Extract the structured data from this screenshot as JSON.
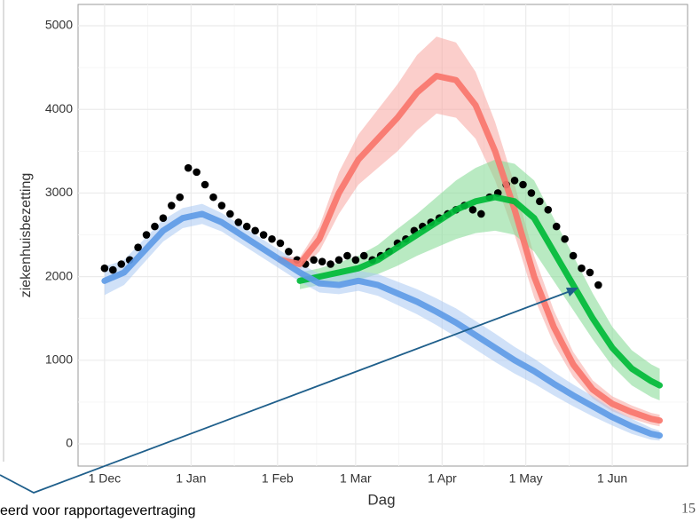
{
  "chart_data": {
    "type": "line",
    "xlabel": "Dag",
    "ylabel": "ziekenhuisbezetting",
    "xlim": [
      -9.5,
      209
    ],
    "ylim": [
      -265,
      5255
    ],
    "xticks": [
      {
        "value": 0,
        "label": "1 Dec"
      },
      {
        "value": 31,
        "label": "1 Jan"
      },
      {
        "value": 62,
        "label": "1 Feb"
      },
      {
        "value": 90,
        "label": "1 Mar"
      },
      {
        "value": 121,
        "label": "1 Apr"
      },
      {
        "value": 151,
        "label": "1 May"
      },
      {
        "value": 182,
        "label": "1 Jun"
      }
    ],
    "yticks": [
      0,
      1000,
      2000,
      3000,
      4000,
      5000
    ],
    "grid": true,
    "series": [
      {
        "color": "#f8766d",
        "band_color": "#f8a5a0",
        "x": [
          63,
          70,
          77,
          84,
          91,
          98,
          105,
          112,
          119,
          126,
          133,
          140,
          147,
          154,
          161,
          168,
          175,
          182,
          189,
          196,
          199
        ],
        "values": [
          2200,
          2150,
          2450,
          3000,
          3400,
          3650,
          3900,
          4200,
          4400,
          4350,
          4050,
          3500,
          2800,
          2000,
          1400,
          950,
          650,
          480,
          380,
          300,
          280
        ],
        "lower": [
          2150,
          2080,
          2300,
          2750,
          3100,
          3300,
          3500,
          3750,
          3950,
          3900,
          3650,
          3150,
          2500,
          1750,
          1200,
          800,
          540,
          390,
          300,
          230,
          210
        ],
        "upper": [
          2250,
          2230,
          2600,
          3250,
          3700,
          4000,
          4300,
          4650,
          4870,
          4800,
          4450,
          3850,
          3100,
          2250,
          1600,
          1100,
          760,
          570,
          460,
          370,
          350
        ]
      },
      {
        "color": "#00ba38",
        "band_color": "#7fd98f",
        "x": [
          70,
          77,
          84,
          91,
          98,
          105,
          112,
          119,
          126,
          133,
          140,
          147,
          154,
          161,
          168,
          175,
          182,
          189,
          196,
          199
        ],
        "values": [
          1950,
          2000,
          2050,
          2100,
          2200,
          2350,
          2500,
          2650,
          2800,
          2900,
          2950,
          2900,
          2700,
          2300,
          1900,
          1500,
          1150,
          900,
          750,
          700
        ],
        "lower": [
          1850,
          1900,
          1930,
          1960,
          2030,
          2130,
          2250,
          2350,
          2450,
          2520,
          2550,
          2500,
          2300,
          1950,
          1600,
          1250,
          930,
          700,
          560,
          520
        ],
        "upper": [
          2050,
          2100,
          2170,
          2250,
          2380,
          2570,
          2750,
          2950,
          3150,
          3300,
          3400,
          3350,
          3150,
          2700,
          2250,
          1800,
          1400,
          1120,
          950,
          900
        ]
      },
      {
        "color": "#5e9be6",
        "band_color": "#a9c8f2",
        "x": [
          0,
          7,
          14,
          21,
          28,
          35,
          42,
          49,
          56,
          63,
          70,
          77,
          84,
          91,
          98,
          105,
          112,
          119,
          126,
          133,
          140,
          147,
          154,
          161,
          168,
          175,
          182,
          189,
          196,
          199
        ],
        "values": [
          1950,
          2050,
          2300,
          2550,
          2700,
          2750,
          2650,
          2500,
          2350,
          2200,
          2050,
          1920,
          1900,
          1950,
          1900,
          1800,
          1700,
          1580,
          1450,
          1300,
          1150,
          1000,
          870,
          720,
          580,
          450,
          320,
          210,
          120,
          100
        ],
        "lower": [
          1780,
          1900,
          2160,
          2420,
          2580,
          2630,
          2540,
          2390,
          2240,
          2090,
          1940,
          1810,
          1790,
          1830,
          1770,
          1660,
          1550,
          1420,
          1280,
          1130,
          980,
          840,
          720,
          580,
          450,
          330,
          220,
          120,
          50,
          40
        ],
        "upper": [
          2120,
          2200,
          2440,
          2680,
          2820,
          2870,
          2760,
          2610,
          2460,
          2310,
          2160,
          2030,
          2010,
          2070,
          2030,
          1940,
          1850,
          1740,
          1620,
          1470,
          1320,
          1160,
          1020,
          860,
          710,
          570,
          420,
          300,
          190,
          160
        ]
      }
    ],
    "points": {
      "color": "#000000",
      "x": [
        0,
        3,
        6,
        9,
        12,
        15,
        18,
        21,
        24,
        27,
        30,
        33,
        36,
        39,
        42,
        45,
        48,
        51,
        54,
        57,
        60,
        63,
        66,
        69,
        72,
        75,
        78,
        81,
        84,
        87,
        90,
        93,
        96,
        99,
        102,
        105,
        108,
        111,
        114,
        117,
        120,
        123,
        126,
        129,
        132,
        135,
        138,
        141,
        144,
        147,
        150,
        153,
        156,
        159,
        162,
        165,
        168,
        171,
        174,
        177
      ],
      "values": [
        2100,
        2080,
        2150,
        2200,
        2350,
        2500,
        2600,
        2700,
        2850,
        2950,
        3300,
        3250,
        3100,
        2950,
        2850,
        2750,
        2650,
        2600,
        2550,
        2500,
        2450,
        2400,
        2300,
        2200,
        2150,
        2200,
        2180,
        2150,
        2200,
        2250,
        2200,
        2250,
        2200,
        2250,
        2300,
        2400,
        2450,
        2550,
        2600,
        2650,
        2700,
        2750,
        2800,
        2850,
        2800,
        2750,
        2950,
        3000,
        3100,
        3150,
        3100,
        3000,
        2900,
        2800,
        2600,
        2450,
        2250,
        2100,
        2050,
        1900
      ]
    }
  },
  "footer": {
    "text": "eerd voor rapportagevertraging",
    "page": "15"
  }
}
